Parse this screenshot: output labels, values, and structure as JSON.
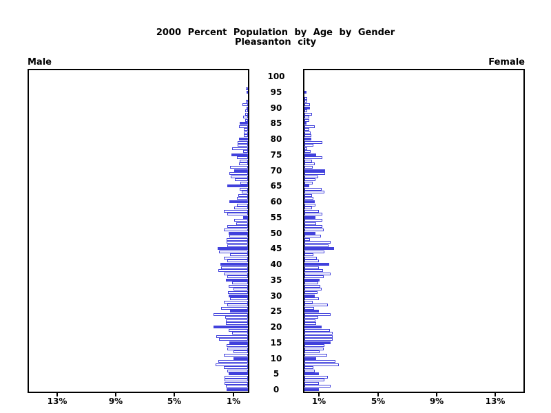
{
  "title": {
    "line1": "2000 Percent Population by Age by Gender",
    "line2": "Pleasanton city"
  },
  "panel_labels": {
    "left": "Male",
    "right": "Female"
  },
  "axis": {
    "age_tick_labels": [
      "100",
      "95",
      "90",
      "85",
      "80",
      "75",
      "70",
      "65",
      "60",
      "55",
      "50",
      "45",
      "40",
      "35",
      "30",
      "25",
      "20",
      "15",
      "10",
      "5",
      "0"
    ],
    "left_pct_tick_labels": [
      "13%",
      "9%",
      "5%",
      "1%"
    ],
    "right_pct_tick_labels": [
      "1%",
      "5%",
      "9%",
      "13%"
    ]
  },
  "colors": {
    "bar_blue": "#4141dc",
    "axis_black": "#000000",
    "background": "#ffffff"
  },
  "chart_data": {
    "type": "bar",
    "subtype": "population_pyramid",
    "title": "2000 Percent Population by Age by Gender",
    "subtitle": "Pleasanton city",
    "orientation": "horizontal",
    "x_axis": "percent of population, 0 at center line of each panel, male axis reversed",
    "xlim_each_side": [
      0,
      15
    ],
    "x_tick_values_pct": [
      1,
      5,
      9,
      13
    ],
    "y_axis": "single year of age, 0 (bottom) to 100 (top), labels every 5 years",
    "age_label_values": [
      100,
      95,
      90,
      85,
      80,
      75,
      70,
      65,
      60,
      55,
      50,
      45,
      40,
      35,
      30,
      25,
      20,
      15,
      10,
      5,
      0
    ],
    "highlight_rule": "ages divisible by 5 drawn as solid filled bars; other ages hollow outline bars",
    "legend": "none",
    "grid": false,
    "series": [
      {
        "name": "Male",
        "ages": "index = age in years, 0 to 100",
        "values_pct": [
          1.44,
          1.5,
          1.6,
          1.6,
          1.6,
          1.33,
          1.4,
          1.64,
          2.2,
          2.0,
          0.97,
          1.64,
          0.97,
          1.4,
          1.44,
          1.25,
          1.96,
          2.16,
          1.1,
          1.3,
          2.35,
          1.5,
          1.5,
          1.55,
          2.35,
          1.2,
          1.83,
          1.4,
          1.64,
          1.2,
          1.3,
          1.35,
          0.97,
          1.3,
          1.1,
          1.5,
          1.4,
          1.64,
          2.0,
          1.84,
          1.88,
          1.4,
          1.64,
          1.2,
          1.97,
          2.07,
          1.4,
          1.44,
          1.44,
          1.25,
          1.33,
          1.64,
          1.4,
          0.81,
          0.94,
          0.33,
          1.4,
          1.63,
          0.94,
          0.77,
          1.25,
          0.77,
          0.67,
          0.44,
          0.58,
          1.4,
          0.5,
          0.9,
          1.15,
          1.25,
          0.94,
          1.2,
          0.63,
          0.58,
          0.74,
          1.13,
          0.35,
          1.08,
          0.7,
          0.7,
          0.6,
          0.3,
          0.3,
          0.3,
          0.6,
          0.56,
          0.2,
          0.35,
          0.2,
          0.2,
          0.1,
          0.37,
          0.15,
          0.0,
          0.0,
          0.05,
          0.15,
          0.0,
          0.0,
          0.0,
          0.0
        ]
      },
      {
        "name": "Female",
        "ages": "index = age in years, 0 to 100",
        "values_pct": [
          1.0,
          1.8,
          0.97,
          1.35,
          1.58,
          1.0,
          0.7,
          0.63,
          2.33,
          2.1,
          0.81,
          1.55,
          1.03,
          1.32,
          1.35,
          1.8,
          1.9,
          1.9,
          1.94,
          1.74,
          1.19,
          0.8,
          0.77,
          0.95,
          1.8,
          1.0,
          0.65,
          1.6,
          0.58,
          0.97,
          0.7,
          0.9,
          1.18,
          1.08,
          0.92,
          1.03,
          1.3,
          1.8,
          1.28,
          1.0,
          1.7,
          1.0,
          0.85,
          0.6,
          1.35,
          2.0,
          1.63,
          1.8,
          0.38,
          1.13,
          0.74,
          1.3,
          1.2,
          0.8,
          1.2,
          0.77,
          1.2,
          0.97,
          0.5,
          0.77,
          0.7,
          0.6,
          0.5,
          1.35,
          1.16,
          0.33,
          0.56,
          0.77,
          0.92,
          1.42,
          1.4,
          0.55,
          0.72,
          0.53,
          1.2,
          0.8,
          0.4,
          0.2,
          0.6,
          1.2,
          0.46,
          0.46,
          0.4,
          0.35,
          0.7,
          0.14,
          0.35,
          0.35,
          0.53,
          0.19,
          0.38,
          0.38,
          0.19,
          0.19,
          0.0,
          0.14,
          0.0,
          0.0,
          0.0,
          0.0,
          0.0
        ]
      }
    ]
  }
}
